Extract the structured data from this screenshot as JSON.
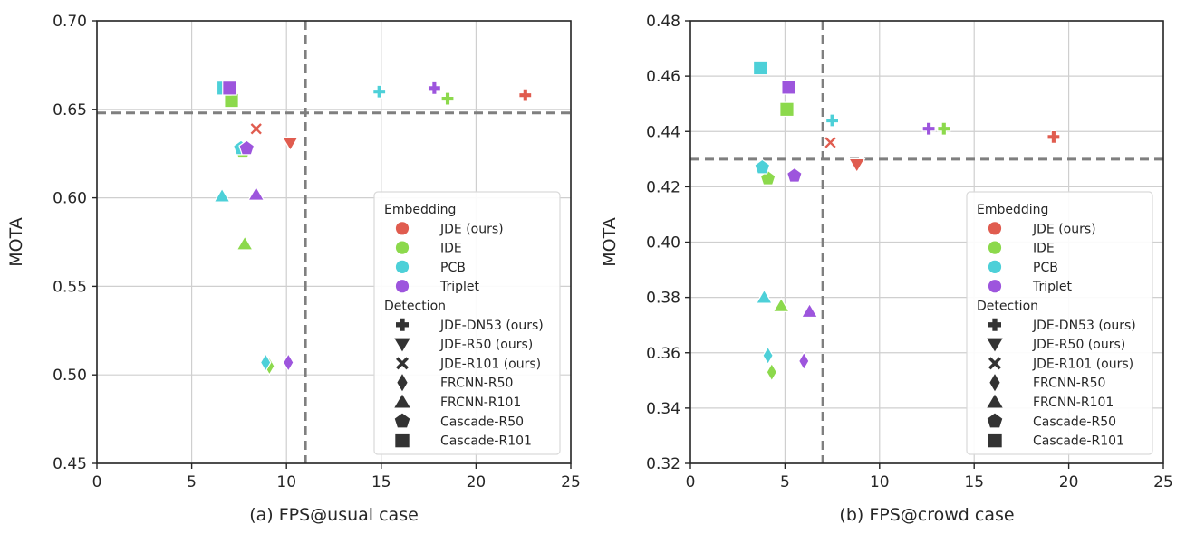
{
  "colors": {
    "JDE (ours)": "#e05c4f",
    "IDE": "#8cd94c",
    "PCB": "#4dd0d8",
    "Triplet": "#9d55dd"
  },
  "chart_data": [
    {
      "type": "scatter",
      "xlabel": "(a) FPS@usual case",
      "ylabel": "MOTA",
      "xlim": [
        0,
        25
      ],
      "ylim": [
        0.45,
        0.7
      ],
      "xticks": [
        0,
        5,
        10,
        15,
        20,
        25
      ],
      "yticks": [
        0.45,
        0.5,
        0.55,
        0.6,
        0.65,
        0.7
      ],
      "xtick_labels": [
        "0",
        "5",
        "10",
        "15",
        "20",
        "25"
      ],
      "ytick_labels": [
        "0.45",
        "0.50",
        "0.55",
        "0.60",
        "0.65",
        "0.70"
      ],
      "grid": true,
      "ref_lines": {
        "x": 11.0,
        "y": 0.648
      },
      "legend": {
        "position": "lower-right",
        "groups": [
          {
            "title": "Embedding",
            "entries": [
              "JDE (ours)",
              "IDE",
              "PCB",
              "Triplet"
            ]
          },
          {
            "title": "Detection",
            "entries": [
              "JDE-DN53 (ours)",
              "JDE-R50 (ours)",
              "JDE-R101 (ours)",
              "FRCNN-R50",
              "FRCNN-R101",
              "Cascade-R50",
              "Cascade-R101"
            ]
          }
        ]
      },
      "points": [
        {
          "x": 22.6,
          "y": 0.658,
          "embedding": "JDE (ours)",
          "detection": "JDE-DN53 (ours)"
        },
        {
          "x": 10.2,
          "y": 0.631,
          "embedding": "JDE (ours)",
          "detection": "JDE-R50 (ours)"
        },
        {
          "x": 8.4,
          "y": 0.639,
          "embedding": "JDE (ours)",
          "detection": "JDE-R101 (ours)"
        },
        {
          "x": 18.5,
          "y": 0.656,
          "embedding": "IDE",
          "detection": "JDE-DN53 (ours)"
        },
        {
          "x": 9.1,
          "y": 0.505,
          "embedding": "IDE",
          "detection": "FRCNN-R50"
        },
        {
          "x": 7.8,
          "y": 0.574,
          "embedding": "IDE",
          "detection": "FRCNN-R101"
        },
        {
          "x": 7.7,
          "y": 0.626,
          "embedding": "IDE",
          "detection": "Cascade-R50"
        },
        {
          "x": 7.1,
          "y": 0.655,
          "embedding": "IDE",
          "detection": "Cascade-R101"
        },
        {
          "x": 14.9,
          "y": 0.66,
          "embedding": "PCB",
          "detection": "JDE-DN53 (ours)"
        },
        {
          "x": 8.9,
          "y": 0.507,
          "embedding": "PCB",
          "detection": "FRCNN-R50"
        },
        {
          "x": 6.6,
          "y": 0.601,
          "embedding": "PCB",
          "detection": "FRCNN-R101"
        },
        {
          "x": 7.6,
          "y": 0.628,
          "embedding": "PCB",
          "detection": "Cascade-R50"
        },
        {
          "x": 6.7,
          "y": 0.662,
          "embedding": "PCB",
          "detection": "Cascade-R101"
        },
        {
          "x": 17.8,
          "y": 0.662,
          "embedding": "Triplet",
          "detection": "JDE-DN53 (ours)"
        },
        {
          "x": 10.1,
          "y": 0.507,
          "embedding": "Triplet",
          "detection": "FRCNN-R50"
        },
        {
          "x": 8.4,
          "y": 0.602,
          "embedding": "Triplet",
          "detection": "FRCNN-R101"
        },
        {
          "x": 7.9,
          "y": 0.628,
          "embedding": "Triplet",
          "detection": "Cascade-R50"
        },
        {
          "x": 7.0,
          "y": 0.662,
          "embedding": "Triplet",
          "detection": "Cascade-R101"
        }
      ]
    },
    {
      "type": "scatter",
      "xlabel": "(b) FPS@crowd case",
      "ylabel": "MOTA",
      "xlim": [
        0,
        25
      ],
      "ylim": [
        0.32,
        0.48
      ],
      "xticks": [
        0,
        5,
        10,
        15,
        20,
        25
      ],
      "yticks": [
        0.32,
        0.34,
        0.36,
        0.38,
        0.4,
        0.42,
        0.44,
        0.46,
        0.48
      ],
      "xtick_labels": [
        "0",
        "5",
        "10",
        "15",
        "20",
        "25"
      ],
      "ytick_labels": [
        "0.32",
        "0.34",
        "0.36",
        "0.38",
        "0.40",
        "0.42",
        "0.44",
        "0.46",
        "0.48"
      ],
      "grid": true,
      "ref_lines": {
        "x": 7.0,
        "y": 0.43
      },
      "legend": {
        "position": "lower-right",
        "groups": [
          {
            "title": "Embedding",
            "entries": [
              "JDE (ours)",
              "IDE",
              "PCB",
              "Triplet"
            ]
          },
          {
            "title": "Detection",
            "entries": [
              "JDE-DN53 (ours)",
              "JDE-R50 (ours)",
              "JDE-R101 (ours)",
              "FRCNN-R50",
              "FRCNN-R101",
              "Cascade-R50",
              "Cascade-R101"
            ]
          }
        ]
      },
      "points": [
        {
          "x": 19.2,
          "y": 0.438,
          "embedding": "JDE (ours)",
          "detection": "JDE-DN53 (ours)"
        },
        {
          "x": 8.8,
          "y": 0.428,
          "embedding": "JDE (ours)",
          "detection": "JDE-R50 (ours)"
        },
        {
          "x": 7.4,
          "y": 0.436,
          "embedding": "JDE (ours)",
          "detection": "JDE-R101 (ours)"
        },
        {
          "x": 13.4,
          "y": 0.441,
          "embedding": "IDE",
          "detection": "JDE-DN53 (ours)"
        },
        {
          "x": 4.3,
          "y": 0.353,
          "embedding": "IDE",
          "detection": "FRCNN-R50"
        },
        {
          "x": 4.8,
          "y": 0.377,
          "embedding": "IDE",
          "detection": "FRCNN-R101"
        },
        {
          "x": 4.1,
          "y": 0.423,
          "embedding": "IDE",
          "detection": "Cascade-R50"
        },
        {
          "x": 5.1,
          "y": 0.448,
          "embedding": "IDE",
          "detection": "Cascade-R101"
        },
        {
          "x": 7.5,
          "y": 0.444,
          "embedding": "PCB",
          "detection": "JDE-DN53 (ours)"
        },
        {
          "x": 4.1,
          "y": 0.359,
          "embedding": "PCB",
          "detection": "FRCNN-R50"
        },
        {
          "x": 3.9,
          "y": 0.38,
          "embedding": "PCB",
          "detection": "FRCNN-R101"
        },
        {
          "x": 3.8,
          "y": 0.427,
          "embedding": "PCB",
          "detection": "Cascade-R50"
        },
        {
          "x": 3.7,
          "y": 0.463,
          "embedding": "PCB",
          "detection": "Cascade-R101"
        },
        {
          "x": 12.6,
          "y": 0.441,
          "embedding": "Triplet",
          "detection": "JDE-DN53 (ours)"
        },
        {
          "x": 6.0,
          "y": 0.357,
          "embedding": "Triplet",
          "detection": "FRCNN-R50"
        },
        {
          "x": 6.3,
          "y": 0.375,
          "embedding": "Triplet",
          "detection": "FRCNN-R101"
        },
        {
          "x": 5.5,
          "y": 0.424,
          "embedding": "Triplet",
          "detection": "Cascade-R50"
        },
        {
          "x": 5.2,
          "y": 0.456,
          "embedding": "Triplet",
          "detection": "Cascade-R101"
        }
      ]
    }
  ]
}
